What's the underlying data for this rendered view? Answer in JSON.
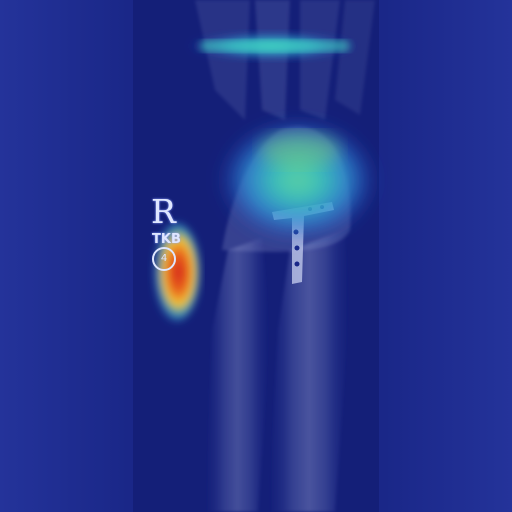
{
  "image": {
    "description_type": "radiograph-heatmap-overlay",
    "colors": {
      "background": "#1e2b8f",
      "film_strip": "#14207a",
      "bone": "#b9c2e6",
      "heat_hot": "#d4241c",
      "heat_warm": "#f0c93a",
      "heat_mid": "#2fc7b9",
      "heat_cool": "#2b6de0"
    }
  },
  "side_marker": {
    "letter": "R",
    "initials": "TKB",
    "circle_number": "4"
  }
}
